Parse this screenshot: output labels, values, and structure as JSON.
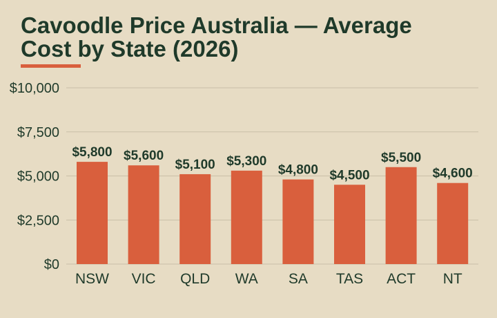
{
  "colors": {
    "background": "#e7dcc4",
    "text": "#1f3a2a",
    "bar": "#d95f3d",
    "accent": "#d95f3d",
    "grid": "#c9bea7"
  },
  "chart_data": {
    "type": "bar",
    "title": "Cavoodle Price Australia — Average Cost by State (2026)",
    "xlabel": "",
    "ylabel": "",
    "categories": [
      "NSW",
      "VIC",
      "QLD",
      "WA",
      "SA",
      "TAS",
      "ACT",
      "NT"
    ],
    "values": [
      5800,
      5600,
      5100,
      5300,
      4800,
      4500,
      5500,
      4600
    ],
    "value_labels": [
      "$5,800",
      "$5,600",
      "$5,100",
      "$5,300",
      "$4,800",
      "$4,500",
      "$5,500",
      "$4,600"
    ],
    "ylim": [
      0,
      10000
    ],
    "yticks": [
      0,
      2500,
      5000,
      7500,
      10000
    ],
    "ytick_labels": [
      "$0",
      "$2,500",
      "$5,000",
      "$7,500",
      "$10,000"
    ],
    "grid": true,
    "legend": false
  }
}
